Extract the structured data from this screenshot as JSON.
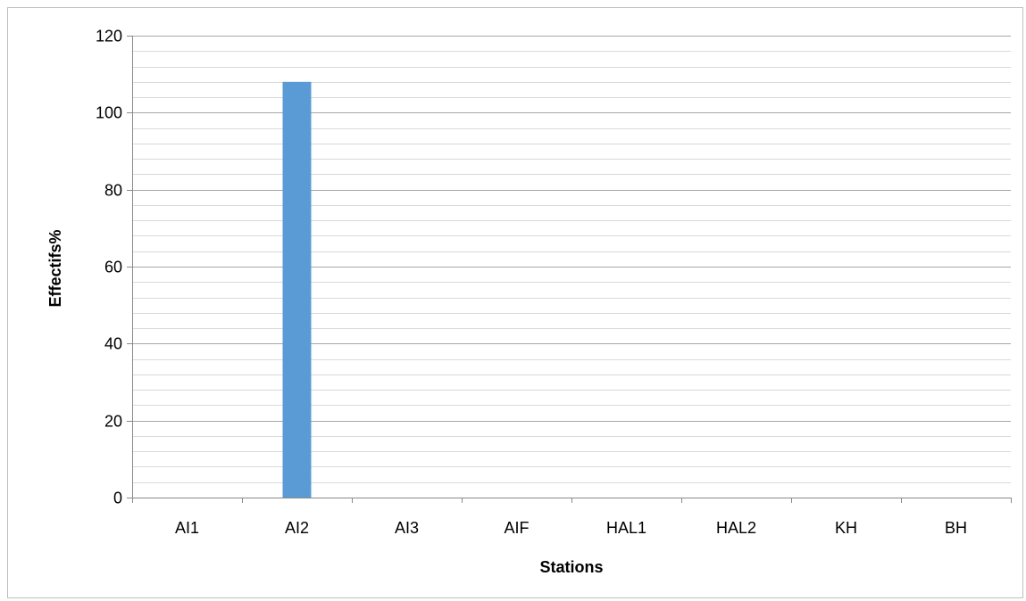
{
  "chart_data": {
    "type": "bar",
    "title": "",
    "xlabel": "Stations",
    "ylabel": "Effectifs%",
    "categories": [
      "AI1",
      "AI2",
      "AI3",
      "AIF",
      "HAL1",
      "HAL2",
      "KH",
      "BH"
    ],
    "values": [
      0,
      108,
      0,
      0,
      0,
      0,
      0,
      0
    ],
    "ylim": [
      0,
      120
    ],
    "yticks": [
      0,
      20,
      40,
      60,
      80,
      100,
      120
    ],
    "minor_step": 4,
    "grid": true,
    "legend": "none",
    "bar_color": "#5b9bd5",
    "major_grid_color": "#a6a6a6",
    "minor_grid_color": "#d9d9d9",
    "axis_color": "#898989"
  }
}
